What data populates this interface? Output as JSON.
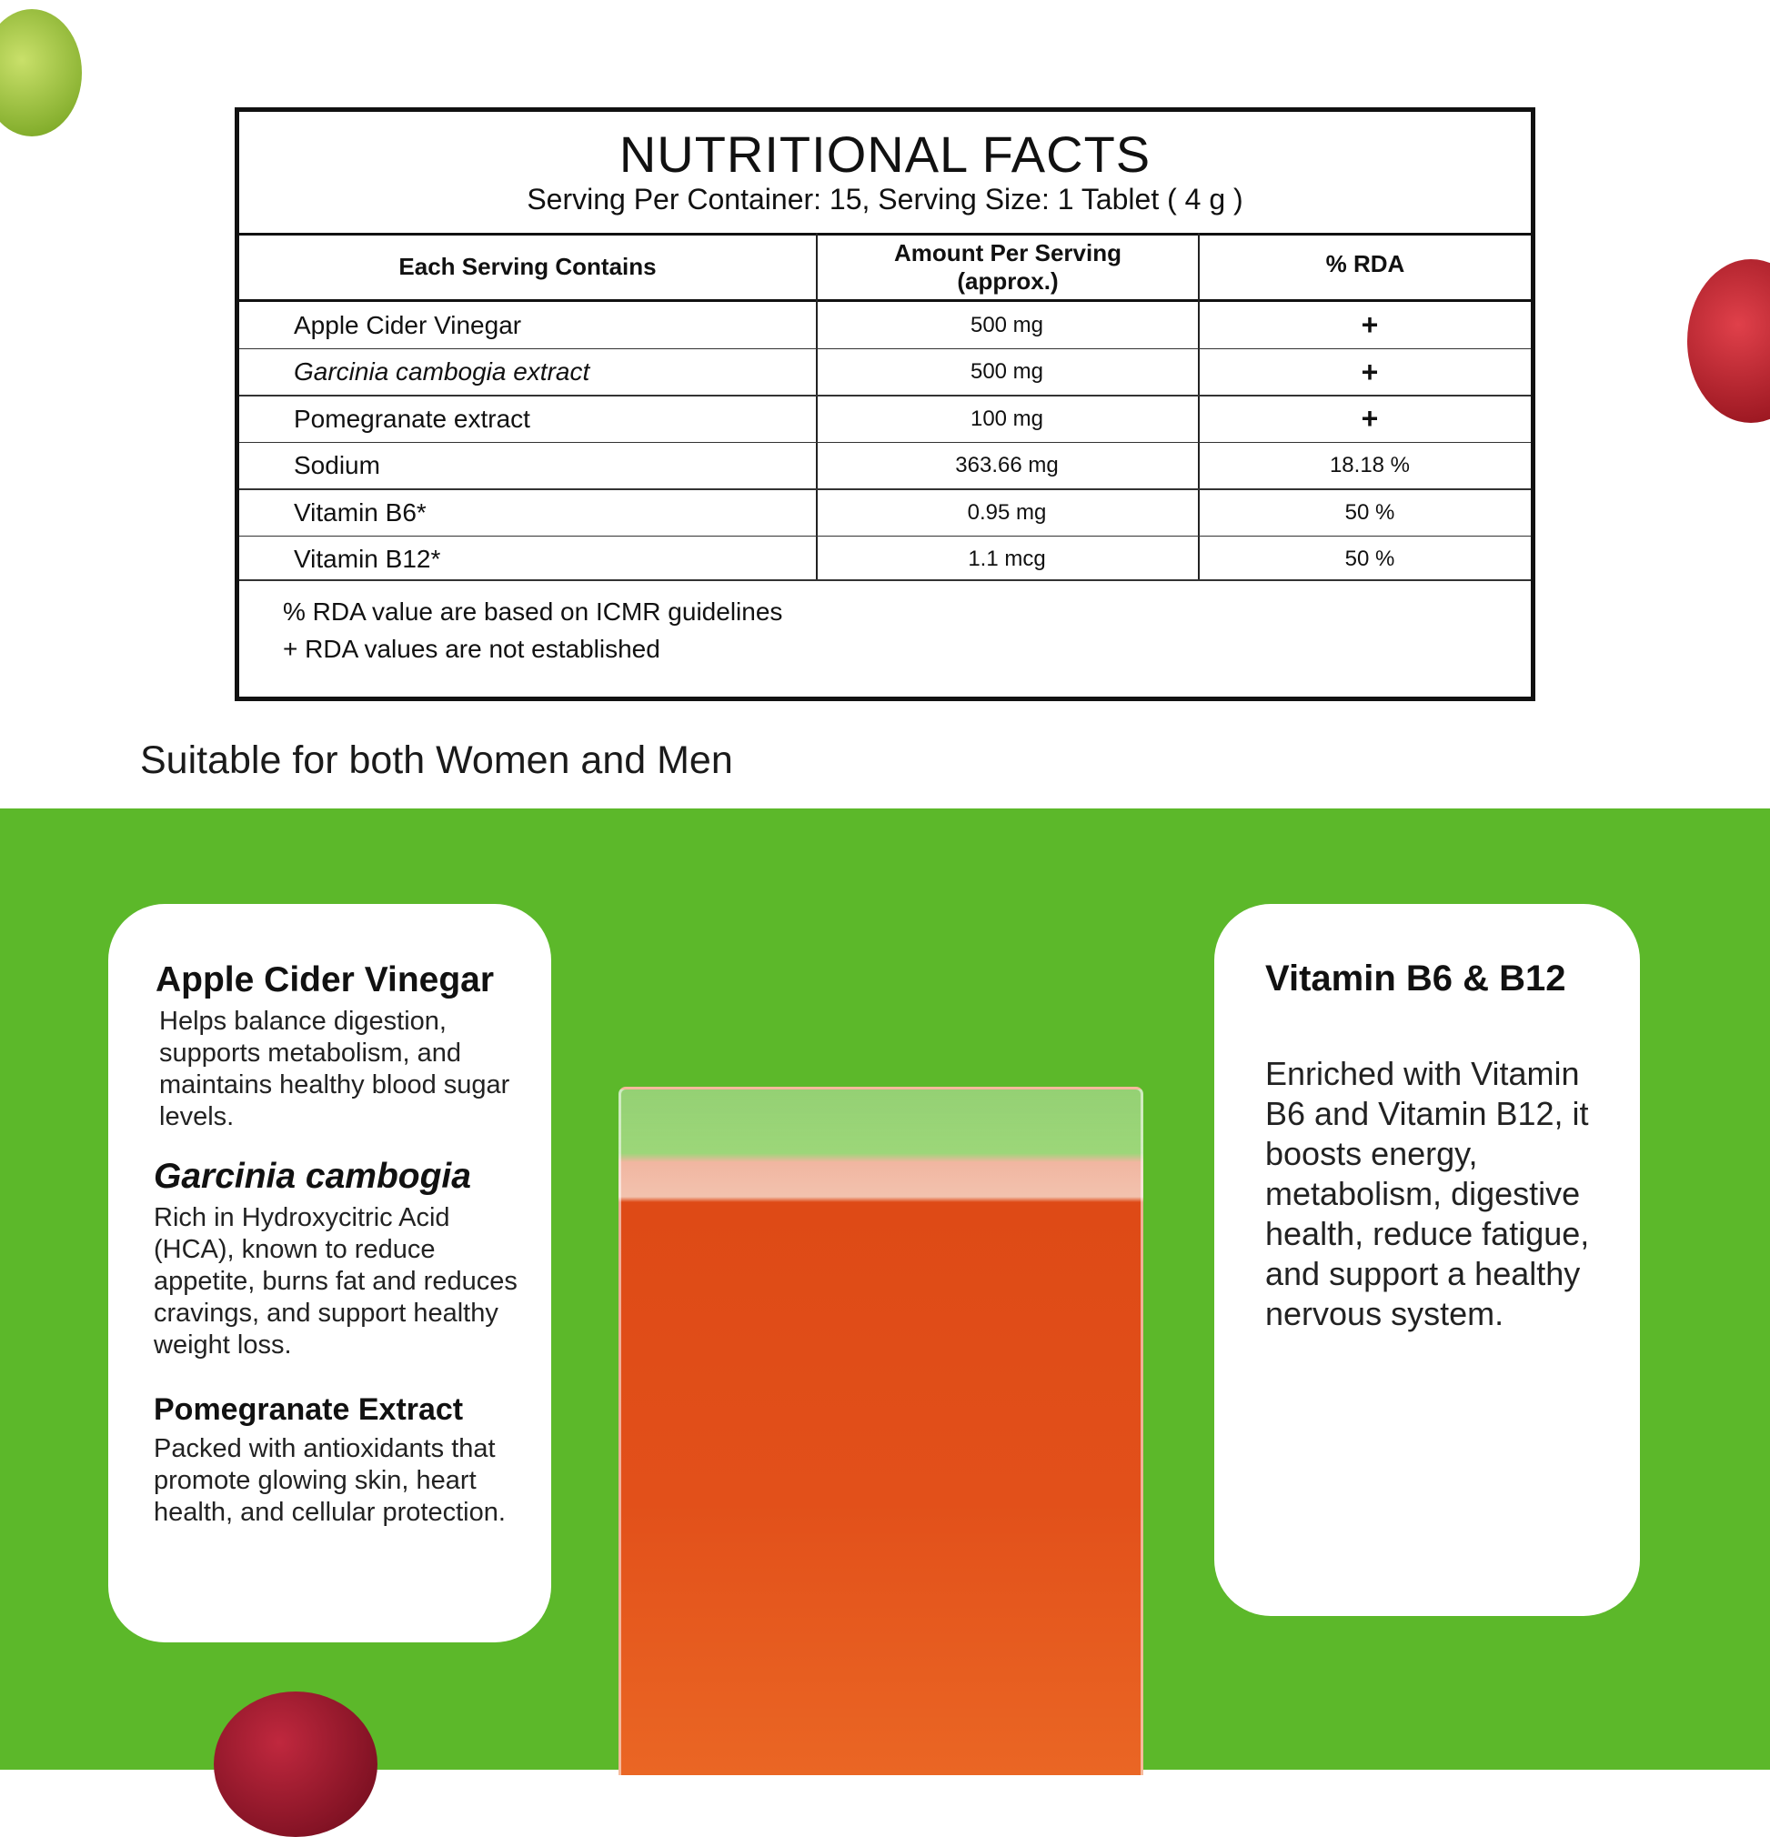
{
  "facts": {
    "title": "NUTRITIONAL FACTS",
    "subtitle": "Serving Per Container: 15, Serving Size:  1 Tablet ( 4 g )",
    "headers": [
      "Each Serving Contains",
      "Amount Per Serving (approx.)",
      "% RDA"
    ],
    "rows": [
      {
        "name": "Apple Cider Vinegar",
        "amount": "500 mg",
        "rda": "+"
      },
      {
        "name": "Garcinia cambogia extract",
        "amount": "500 mg",
        "rda": "+"
      },
      {
        "name": "Pomegranate extract",
        "amount": "100 mg",
        "rda": "+"
      },
      {
        "name": "Sodium",
        "amount": "363.66 mg",
        "rda": "18.18 %"
      },
      {
        "name": "Vitamin B6*",
        "amount": "0.95 mg",
        "rda": "50 %"
      },
      {
        "name": "Vitamin B12*",
        "amount": "1.1 mcg",
        "rda": "50 %"
      }
    ],
    "notes": [
      "% RDA value are based on ICMR guidelines",
      "+ RDA values are not established"
    ]
  },
  "tagline": "Suitable for both Women and Men",
  "left_card": [
    {
      "heading": "Apple Cider Vinegar",
      "body": "Helps balance digestion, supports metabolism, and maintains healthy blood sugar levels."
    },
    {
      "heading": "Garcinia cambogia",
      "body": "Rich in Hydroxycitric Acid (HCA), known to reduce appetite, burns fat and reduces cravings, and support healthy weight loss."
    },
    {
      "heading": "Pomegranate Extract",
      "body": "Packed with antioxidants that promote glowing skin, heart health, and cellular protection."
    }
  ],
  "right_card": {
    "heading": "Vitamin B6 & B12",
    "body": "Enriched with Vitamin B6 and Vitamin B12, it boosts energy, metabolism, digestive health, reduce fatigue, and support a healthy nervous system."
  },
  "colors": {
    "background_green": "#5cb82a",
    "drink": "#e2501a"
  }
}
